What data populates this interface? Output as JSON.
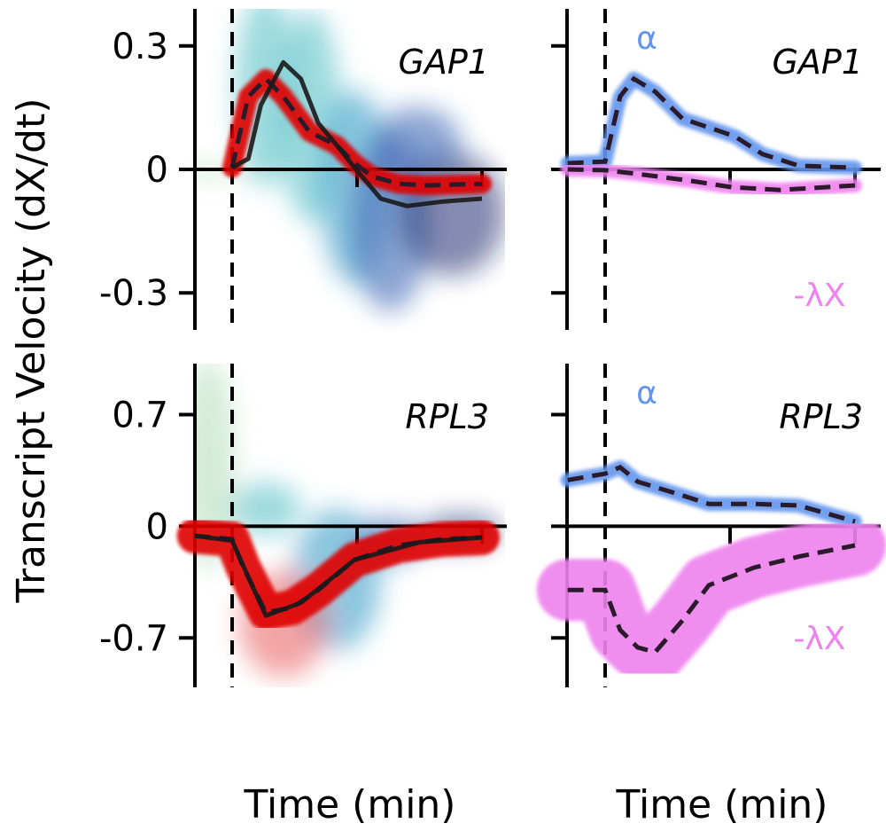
{
  "chart_data": {
    "type": "line",
    "ylabel": "Transcript Velocity (dX/dt)",
    "xlabel": "Time (min)",
    "colors": {
      "fit": "#e00000",
      "observed": "#1a1a1a",
      "alpha": "#6495ed",
      "decay": "#ee82ee",
      "scatter": [
        "#a8d8b0",
        "#40b8c0",
        "#1b8fc0",
        "#1f4fa8",
        "#0b1f66"
      ]
    },
    "x_ticks": [
      1,
      2
    ],
    "panels": [
      {
        "gene": "GAP1",
        "column": "left",
        "row": "top",
        "ylim": [
          -0.39,
          0.39
        ],
        "yticks": [
          0.3,
          0,
          -0.3
        ],
        "ytick_labels": [
          "0.3",
          "0",
          "-0.3"
        ],
        "series": [
          {
            "id": "fit",
            "style": "band+dashed",
            "x": [
              0,
              0.04,
              0.13,
              0.27,
              0.41,
              0.62,
              0.84,
              0.98,
              1.12,
              1.33,
              1.55,
              2.0
            ],
            "y": [
              0.004,
              0.058,
              0.177,
              0.22,
              0.177,
              0.091,
              0.058,
              0.015,
              -0.017,
              -0.035,
              -0.039,
              -0.035
            ]
          },
          {
            "id": "observed",
            "style": "solid",
            "x": [
              0,
              0.13,
              0.23,
              0.41,
              0.55,
              0.69,
              0.84,
              0.98,
              1.19,
              1.4,
              1.69,
              2.0
            ],
            "y": [
              0.004,
              0.026,
              0.156,
              0.26,
              0.22,
              0.112,
              0.058,
              0.004,
              -0.071,
              -0.089,
              -0.078,
              -0.071
            ]
          }
        ]
      },
      {
        "gene": "GAP1",
        "column": "right",
        "row": "top",
        "ylim": [
          -0.39,
          0.39
        ],
        "yticks": [
          0.3,
          0,
          -0.3
        ],
        "labels": {
          "alpha": "α",
          "decay": "-λX"
        },
        "series": [
          {
            "id": "alpha",
            "style": "band+dashed",
            "x": [
              -0.3,
              0,
              0.12,
              0.23,
              0.4,
              0.62,
              0.83,
              1.04,
              1.26,
              1.55,
              2.0
            ],
            "y": [
              0.015,
              0.019,
              0.177,
              0.22,
              0.189,
              0.123,
              0.102,
              0.08,
              0.037,
              0.009,
              0.004
            ]
          },
          {
            "id": "decay",
            "style": "band+dashed",
            "x": [
              -0.3,
              0,
              0.26,
              0.69,
              1.01,
              1.4,
              2.0
            ],
            "y": [
              0,
              -0.002,
              -0.011,
              -0.028,
              -0.043,
              -0.05,
              -0.039
            ]
          }
        ]
      },
      {
        "gene": "RPL3",
        "column": "left",
        "row": "bottom",
        "ylim": [
          -1.01,
          1.02
        ],
        "yticks": [
          0.7,
          0,
          -0.7
        ],
        "ytick_labels": [
          "0.7",
          "0",
          "-0.7"
        ],
        "series": [
          {
            "id": "fit",
            "style": "band+dashed",
            "x": [
              -0.3,
              0,
              0.09,
              0.27,
              0.48,
              0.69,
              0.98,
              1.33,
              1.69,
              2.0
            ],
            "y": [
              -0.06,
              -0.08,
              -0.26,
              -0.54,
              -0.51,
              -0.4,
              -0.21,
              -0.12,
              -0.08,
              -0.07
            ]
          },
          {
            "id": "observed",
            "style": "solid",
            "x": [
              -0.3,
              0,
              0.13,
              0.27,
              0.55,
              0.98,
              1.5,
              2.0
            ],
            "y": [
              -0.06,
              -0.09,
              -0.32,
              -0.56,
              -0.48,
              -0.21,
              -0.1,
              -0.07
            ]
          }
        ]
      },
      {
        "gene": "RPL3",
        "column": "right",
        "row": "bottom",
        "ylim": [
          -1.01,
          1.02
        ],
        "yticks": [
          0.7,
          0,
          -0.7
        ],
        "labels": {
          "alpha": "α",
          "decay": "-λX"
        },
        "series": [
          {
            "id": "alpha",
            "style": "band+dashed",
            "x": [
              -0.3,
              0,
              0.12,
              0.26,
              0.55,
              0.83,
              1.19,
              1.55,
              2.0
            ],
            "y": [
              0.29,
              0.33,
              0.37,
              0.28,
              0.21,
              0.14,
              0.14,
              0.13,
              0.03
            ]
          },
          {
            "id": "decay",
            "style": "band+dashed",
            "x": [
              -0.3,
              0,
              0.12,
              0.26,
              0.4,
              0.62,
              0.83,
              1.19,
              1.55,
              2.0
            ],
            "y": [
              -0.4,
              -0.4,
              -0.65,
              -0.76,
              -0.79,
              -0.59,
              -0.37,
              -0.26,
              -0.19,
              -0.12
            ]
          }
        ]
      }
    ]
  }
}
